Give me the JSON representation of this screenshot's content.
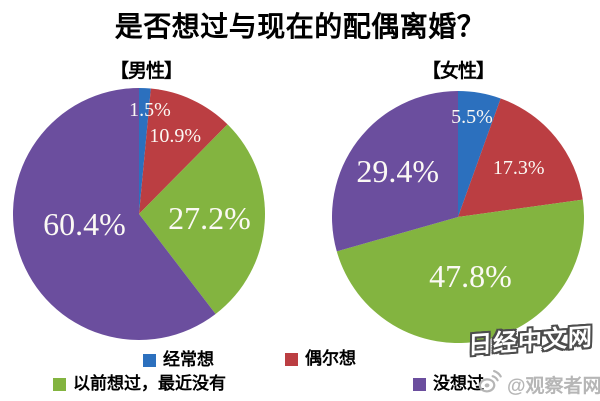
{
  "title": "是否想过与现在的配偶离婚？",
  "chart_data": {
    "type": "pie",
    "title": "是否想过与现在的配偶离婚？",
    "direction": "clockwise",
    "start_angle_deg": 0,
    "legend_position": "bottom",
    "legend": [
      {
        "label": "经常想",
        "color": "#2C70BE"
      },
      {
        "label": "偶尔想",
        "color": "#BB3E42"
      },
      {
        "label": "以前想过，最近没有",
        "color": "#83B440"
      },
      {
        "label": "没想过",
        "color": "#6B4E9E"
      }
    ],
    "pies": [
      {
        "name": "【男性】",
        "slices": [
          {
            "label": "经常想",
            "value": 1.5,
            "text": "1.5%",
            "color": "#2C70BE",
            "label_r": 0.83,
            "label_angle": 6,
            "label_size": "small"
          },
          {
            "label": "偶尔想",
            "value": 10.9,
            "text": "10.9%",
            "color": "#BB3E42",
            "label_r": 0.68,
            "label_angle": null,
            "label_size": "small"
          },
          {
            "label": "以前想过，最近没有",
            "value": 27.2,
            "text": "27.2%",
            "color": "#83B440",
            "label_r": 0.56,
            "label_angle": null,
            "label_size": "large"
          },
          {
            "label": "没想过",
            "value": 60.4,
            "text": "60.4%",
            "color": "#6B4E9E",
            "label_r": 0.44,
            "label_angle": 260,
            "label_size": "large"
          }
        ]
      },
      {
        "name": "【女性】",
        "slices": [
          {
            "label": "经常想",
            "value": 5.5,
            "text": "5.5%",
            "color": "#2C70BE",
            "label_r": 0.8,
            "label_angle": 8,
            "label_size": "small"
          },
          {
            "label": "偶尔想",
            "value": 17.3,
            "text": "17.3%",
            "color": "#BB3E42",
            "label_r": 0.62,
            "label_angle": null,
            "label_size": "small"
          },
          {
            "label": "以前想过，最近没有",
            "value": 47.8,
            "text": "47.8%",
            "color": "#83B440",
            "label_r": 0.48,
            "label_angle": null,
            "label_size": "large"
          },
          {
            "label": "没想过",
            "value": 29.4,
            "text": "29.4%",
            "color": "#6B4E9E",
            "label_r": 0.6,
            "label_angle": null,
            "label_size": "large"
          }
        ]
      }
    ]
  },
  "watermarks": {
    "site": "日经中文网",
    "account": "@观察者网",
    "weibo_icon": "weibo-logo",
    "site_color": "#ffffff",
    "site_outline": "#4d4d4d",
    "account_color": "#b2b2b2"
  }
}
